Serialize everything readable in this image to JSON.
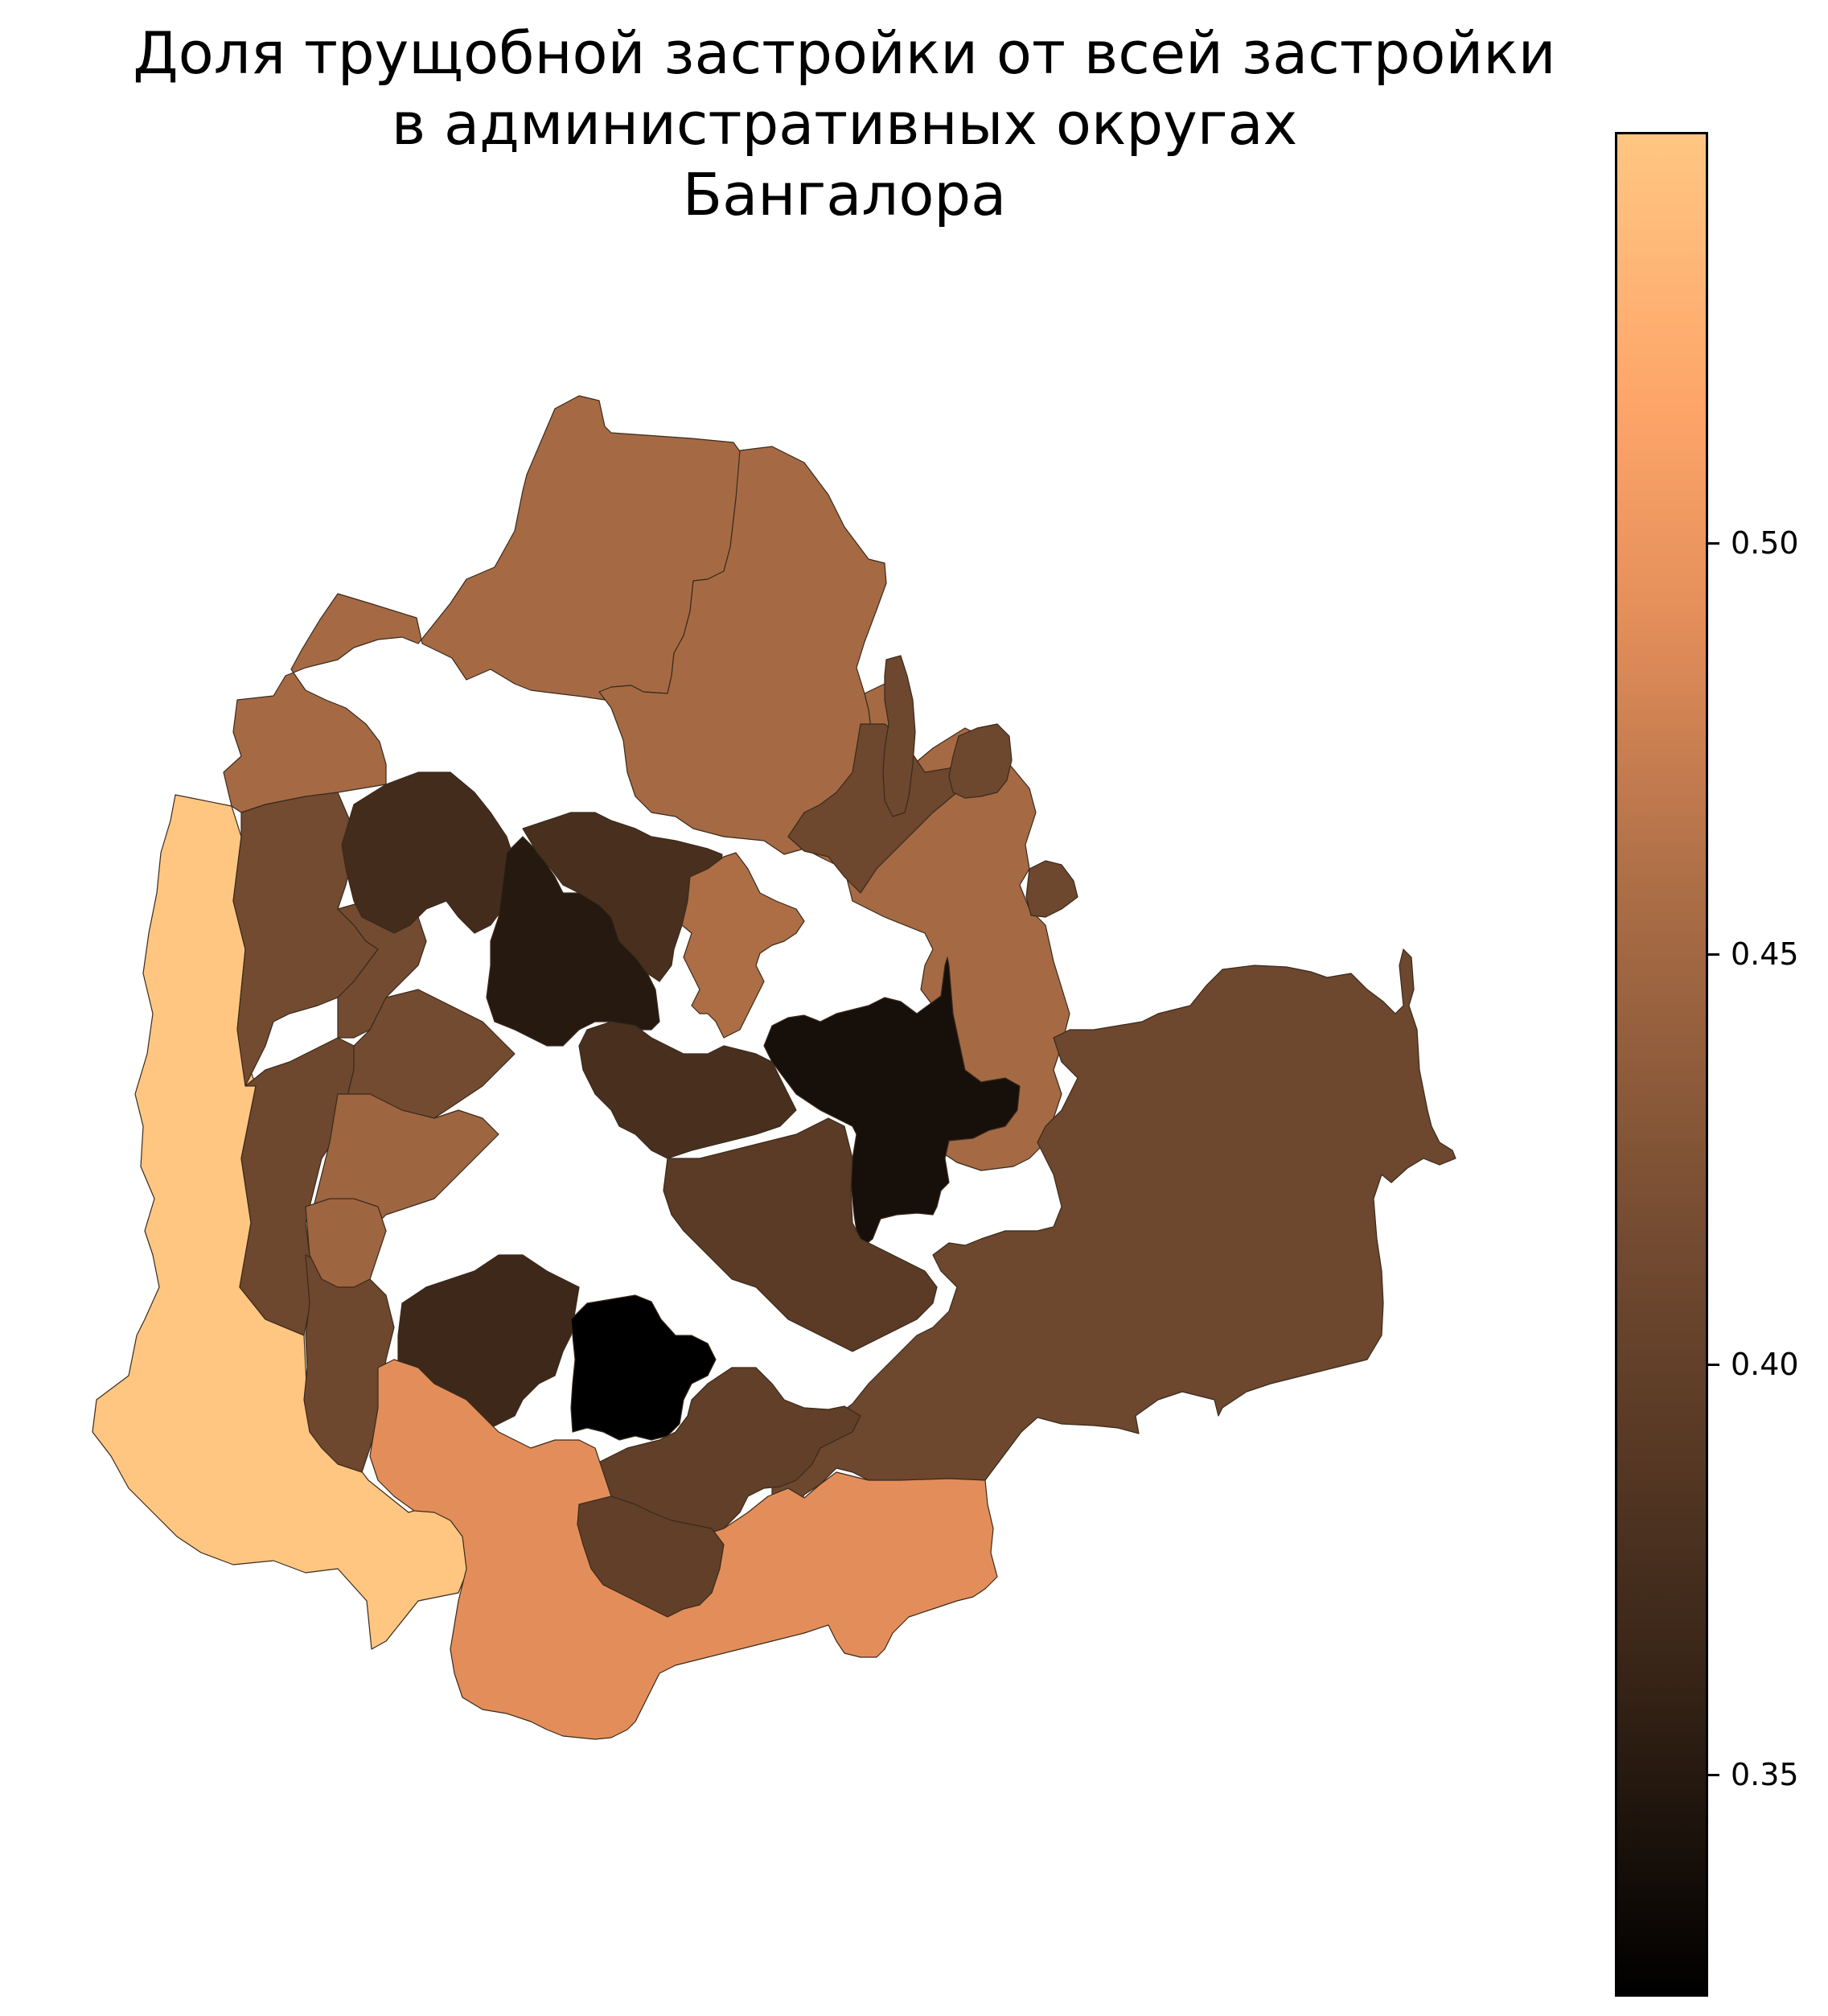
{
  "title": {
    "line1": "Доля трущобной застройки от всей застройки",
    "line2": "в административных округах",
    "line3": "Бангалора"
  },
  "colorbar": {
    "colormap": "copper",
    "min_value": 0.32,
    "max_value": 0.53,
    "colors": [
      "#000000",
      "#3a2618",
      "#724a30",
      "#ae6f47",
      "#e48e5a",
      "#fea66a",
      "#ffc682"
    ],
    "ticks": [
      {
        "value": 0.5,
        "label": "0.50"
      },
      {
        "value": 0.45,
        "label": "0.45"
      },
      {
        "value": 0.4,
        "label": "0.40"
      },
      {
        "value": 0.35,
        "label": "0.35"
      }
    ]
  },
  "map": {
    "districts": [
      {
        "id": "west",
        "share": 0.53
      },
      {
        "id": "south",
        "share": 0.475
      },
      {
        "id": "north",
        "share": 0.44
      },
      {
        "id": "northeast",
        "share": 0.44
      },
      {
        "id": "east-outer",
        "share": 0.4
      },
      {
        "id": "northwest-band",
        "share": 0.405
      },
      {
        "id": "southwest-band",
        "share": 0.4
      },
      {
        "id": "north-central-dark",
        "share": 0.365
      },
      {
        "id": "north-central-black",
        "share": 0.345
      },
      {
        "id": "north-mid",
        "share": 0.37
      },
      {
        "id": "east-dark",
        "share": 0.335
      },
      {
        "id": "central-east",
        "share": 0.37
      },
      {
        "id": "central-south",
        "share": 0.385
      },
      {
        "id": "south-dark",
        "share": 0.36
      },
      {
        "id": "south-central-black",
        "share": 0.32
      },
      {
        "id": "southeast-inner",
        "share": 0.39
      },
      {
        "id": "central-light",
        "share": 0.435
      },
      {
        "id": "north-east-light",
        "share": 0.445
      },
      {
        "id": "east-light",
        "share": 0.44
      },
      {
        "id": "middle-west",
        "share": 0.405
      },
      {
        "id": "small-north-1",
        "share": 0.4
      },
      {
        "id": "small-north-2",
        "share": 0.4
      }
    ]
  }
}
